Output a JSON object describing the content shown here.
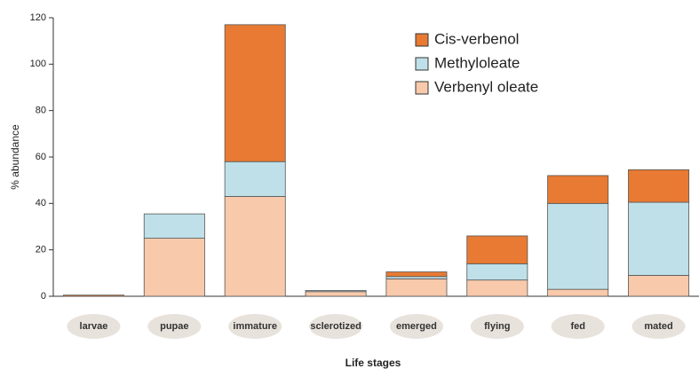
{
  "chart_data": {
    "type": "stacked-bar",
    "x_label": "Life stages",
    "y_label": "% abundance",
    "categories": [
      "larvae",
      "pupae",
      "immature",
      "sclerotized",
      "emerged",
      "flying",
      "fed",
      "mated"
    ],
    "series": [
      {
        "name": "Verbenyl oleate",
        "color": "#f8c9ab",
        "values": [
          0,
          25,
          43,
          2,
          7.5,
          7,
          3,
          9
        ]
      },
      {
        "name": "Methyloleate",
        "color": "#bfe0e8",
        "values": [
          0,
          10.5,
          15,
          0.5,
          1,
          7,
          37,
          31.5
        ]
      },
      {
        "name": "Cis-verbenol",
        "color": "#e87a33",
        "values": [
          0.5,
          0,
          59,
          0,
          2,
          12,
          12,
          14
        ]
      }
    ],
    "legend_order": [
      2,
      1,
      0
    ],
    "ylim": [
      0,
      120
    ],
    "yticks": [
      0,
      20,
      40,
      60,
      80,
      100,
      120
    ]
  }
}
